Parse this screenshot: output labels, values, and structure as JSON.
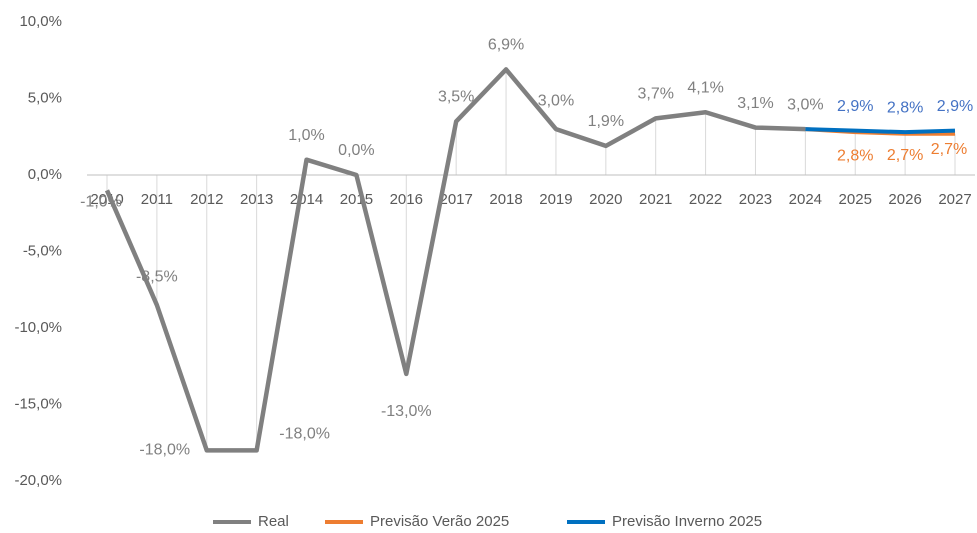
{
  "chart_data": {
    "type": "line",
    "categories": [
      "2010",
      "2011",
      "2012",
      "2013",
      "2014",
      "2015",
      "2016",
      "2017",
      "2018",
      "2019",
      "2020",
      "2021",
      "2022",
      "2023",
      "2024",
      "2025",
      "2026",
      "2027"
    ],
    "ylim": [
      -20,
      10
    ],
    "yticks": [
      {
        "value": -20,
        "label": "-20,0%"
      },
      {
        "value": -15,
        "label": "-15,0%"
      },
      {
        "value": -10,
        "label": "-10,0%"
      },
      {
        "value": -5,
        "label": "-5,0%"
      },
      {
        "value": 0,
        "label": "0,0%"
      },
      {
        "value": 5,
        "label": "5,0%"
      },
      {
        "value": 10,
        "label": "10,0%"
      }
    ],
    "grid": false,
    "legend": "bottom",
    "series": [
      {
        "name": "Real",
        "color": "#808080",
        "values": [
          -1.0,
          -8.5,
          -18.0,
          -18.0,
          1.0,
          0.0,
          -13.0,
          3.5,
          6.9,
          3.0,
          1.9,
          3.7,
          4.1,
          3.1,
          3.0,
          null,
          null,
          null
        ],
        "value_labels": [
          "-1,0%",
          "-8,5%",
          "-18,0%",
          "-18,0%",
          "1,0%",
          "0,0%",
          "-13,0%",
          "3,5%",
          "6,9%",
          "3,0%",
          "1,9%",
          "3,7%",
          "4,1%",
          "3,1%",
          "3,0%",
          null,
          null,
          null
        ]
      },
      {
        "name": "Previsão Verão 2025",
        "color": "#ED7D31",
        "values": [
          null,
          null,
          null,
          null,
          null,
          null,
          null,
          null,
          null,
          null,
          null,
          null,
          null,
          null,
          3.0,
          2.8,
          2.7,
          2.7
        ],
        "value_labels": [
          null,
          null,
          null,
          null,
          null,
          null,
          null,
          null,
          null,
          null,
          null,
          null,
          null,
          null,
          null,
          "2,8%",
          "2,7%",
          "2,7%"
        ]
      },
      {
        "name": "Previsão Inverno 2025",
        "color": "#0070C0",
        "values": [
          null,
          null,
          null,
          null,
          null,
          null,
          null,
          null,
          null,
          null,
          null,
          null,
          null,
          null,
          3.0,
          2.9,
          2.8,
          2.9
        ],
        "value_labels": [
          null,
          null,
          null,
          null,
          null,
          null,
          null,
          null,
          null,
          null,
          null,
          null,
          null,
          null,
          null,
          "2,9%",
          "2,8%",
          "2,9%"
        ]
      }
    ]
  }
}
